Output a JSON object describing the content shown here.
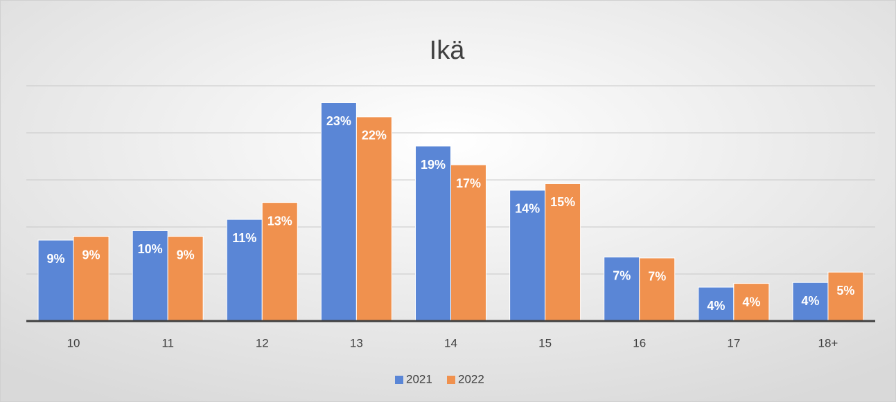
{
  "chart_data": {
    "type": "bar",
    "title": "Ikä",
    "categories": [
      "10",
      "11",
      "12",
      "13",
      "14",
      "15",
      "16",
      "17",
      "18+"
    ],
    "series": [
      {
        "name": "2021",
        "color": "#5a86d6",
        "values": [
          8.6,
          9.6,
          10.8,
          23.2,
          18.6,
          13.9,
          6.8,
          3.6,
          4.1
        ],
        "value_labels": [
          "9%",
          "10%",
          "11%",
          "23%",
          "19%",
          "14%",
          "7%",
          "4%",
          "4%"
        ]
      },
      {
        "name": "2022",
        "color": "#f0914e",
        "values": [
          9.0,
          9.0,
          12.6,
          21.7,
          16.6,
          14.6,
          6.7,
          4.0,
          5.2
        ],
        "value_labels": [
          "9%",
          "9%",
          "13%",
          "22%",
          "17%",
          "15%",
          "7%",
          "4%",
          "5%"
        ]
      }
    ],
    "ylim": [
      0,
      25
    ],
    "yticks": [
      0,
      5,
      10,
      15,
      20,
      25
    ],
    "grid": true,
    "legend": "bottom"
  }
}
